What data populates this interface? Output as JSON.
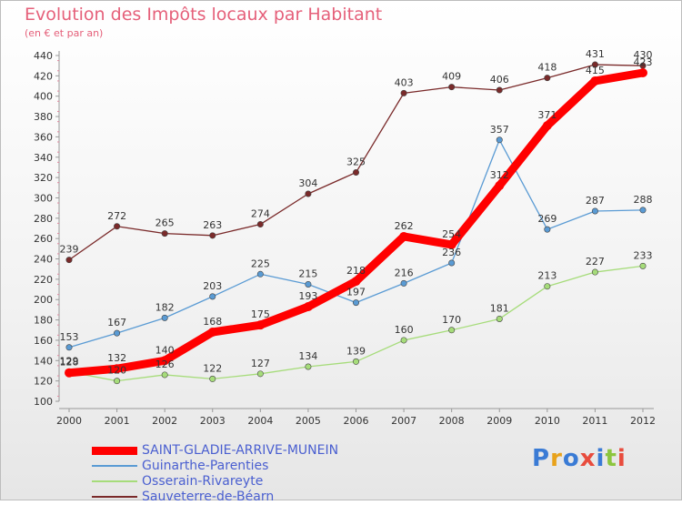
{
  "title": "Evolution des Impôts locaux par Habitant",
  "subtitle": "(en € et par an)",
  "logo": {
    "text": "Proxiti",
    "colors": [
      "#3a7bd5",
      "#e8a21b",
      "#3a7bd5",
      "#e84c3d",
      "#3a7bd5",
      "#8cc63f",
      "#e84c3d"
    ]
  },
  "colors": {
    "axis": "#999999",
    "grid_tick": "#e08aa0",
    "label": "#333333"
  },
  "chart_data": {
    "type": "line",
    "title": "Evolution des Impôts locaux par Habitant",
    "subtitle": "(en € et par an)",
    "xlabel": "",
    "ylabel": "",
    "x": [
      "2000",
      "2001",
      "2002",
      "2003",
      "2004",
      "2005",
      "2006",
      "2007",
      "2008",
      "2009",
      "2010",
      "2011",
      "2012"
    ],
    "ylim": [
      100,
      440
    ],
    "yticks": [
      "100",
      "120",
      "140",
      "160",
      "180",
      "200",
      "220",
      "240",
      "260",
      "280",
      "300",
      "320",
      "340",
      "360",
      "380",
      "400",
      "420",
      "440"
    ],
    "legend_position": "bottom-left",
    "grid": false,
    "series": [
      {
        "name": "SAINT-GLADIE-ARRIVE-MUNEIN",
        "color": "#ff0000",
        "emphasis": true,
        "values": [
          128,
          132,
          140,
          168,
          175,
          193,
          218,
          262,
          254,
          312,
          371,
          415,
          423
        ],
        "labels": [
          "128",
          "132",
          "140",
          "168",
          "175",
          "193",
          "218",
          "262",
          "254",
          "312",
          "371",
          "415",
          "423"
        ]
      },
      {
        "name": "Guinarthe-Parenties",
        "color": "#5a9bd4",
        "emphasis": false,
        "values": [
          153,
          167,
          182,
          203,
          225,
          215,
          197,
          216,
          236,
          357,
          269,
          287,
          288
        ],
        "labels": [
          "153",
          "167",
          "182",
          "203",
          "225",
          "215",
          "197",
          "216",
          "236",
          "357",
          "269",
          "287",
          "288"
        ]
      },
      {
        "name": "Osserain-Rivareyte",
        "color": "#a6dc7a",
        "emphasis": false,
        "values": [
          129,
          120,
          126,
          122,
          127,
          134,
          139,
          160,
          170,
          181,
          213,
          227,
          233
        ],
        "labels": [
          "129",
          "120",
          "126",
          "122",
          "127",
          "134",
          "139",
          "160",
          "170",
          "181",
          "213",
          "227",
          "233"
        ]
      },
      {
        "name": "Sauveterre-de-Béarn",
        "color": "#7a2a2a",
        "emphasis": false,
        "values": [
          239,
          272,
          265,
          263,
          274,
          304,
          325,
          403,
          409,
          406,
          418,
          431,
          430
        ],
        "labels": [
          "239",
          "272",
          "265",
          "263",
          "274",
          "304",
          "325",
          "403",
          "409",
          "406",
          "418",
          "431",
          "430"
        ]
      }
    ]
  }
}
